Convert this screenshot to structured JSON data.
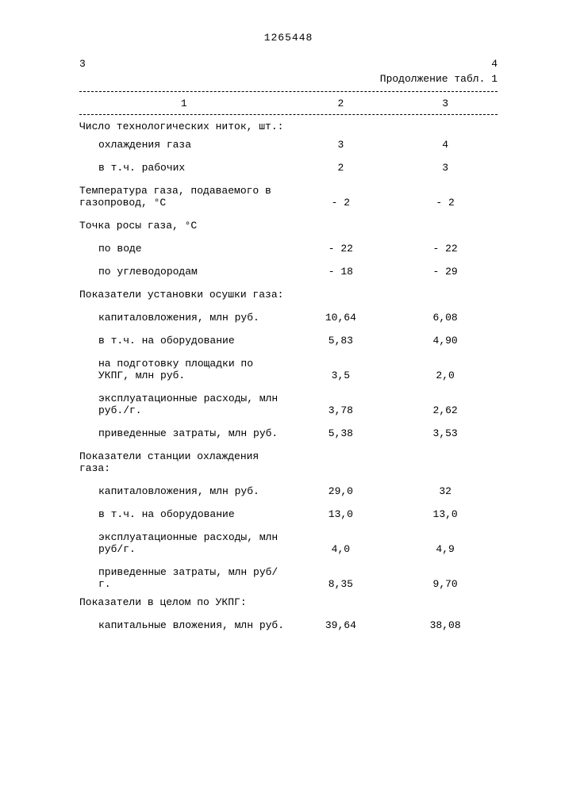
{
  "pageLeft": "3",
  "pageRight": "4",
  "docNumber": "1265448",
  "continuation": "Продолжение табл. 1",
  "headers": {
    "c1": "1",
    "c2": "2",
    "c3": "3"
  },
  "rows": [
    {
      "label": "Число технологических ниток, шт.:",
      "v2": "",
      "v3": "",
      "indent": 1
    },
    {
      "label": "охлаждения газа",
      "v2": "3",
      "v3": "4",
      "indent": 2
    },
    {
      "label": "в т.ч. рабочих",
      "v2": "2",
      "v3": "3",
      "indent": 2,
      "spacer": true
    },
    {
      "label": "Температура газа, подаваемого в газопровод, °C",
      "v2": "- 2",
      "v3": "- 2",
      "indent": 1,
      "spacer": true
    },
    {
      "label": "Точка росы газа, °C",
      "v2": "",
      "v3": "",
      "indent": 1,
      "spacer": true
    },
    {
      "label": "по воде",
      "v2": "- 22",
      "v3": "- 22",
      "indent": 2,
      "spacer": true
    },
    {
      "label": "по углеводородам",
      "v2": "- 18",
      "v3": "- 29",
      "indent": 2,
      "spacer": true
    },
    {
      "label": "Показатели установки осушки газа:",
      "v2": "",
      "v3": "",
      "indent": 1,
      "spacer": true
    },
    {
      "label": "капиталовложения, млн руб.",
      "v2": "10,64",
      "v3": "6,08",
      "indent": 2,
      "spacer": true
    },
    {
      "label": "в т.ч. на оборудование",
      "v2": "5,83",
      "v3": "4,90",
      "indent": 2,
      "spacer": true
    },
    {
      "label": "на подготовку площадки по УКПГ, млн руб.",
      "v2": "3,5",
      "v3": "2,0",
      "indent": 2,
      "spacer": true
    },
    {
      "label": "эксплуатационные расходы, млн руб./г.",
      "v2": "3,78",
      "v3": "2,62",
      "indent": 2,
      "spacer": true
    },
    {
      "label": "приведенные затраты, млн руб.",
      "v2": "5,38",
      "v3": "3,53",
      "indent": 2,
      "spacer": true
    },
    {
      "label": "Показатели станции охлаждения газа:",
      "v2": "",
      "v3": "",
      "indent": 1,
      "spacer": true
    },
    {
      "label": "капиталовложения, млн руб.",
      "v2": "29,0",
      "v3": "32",
      "indent": 2,
      "spacer": true
    },
    {
      "label": "в т.ч. на оборудование",
      "v2": "13,0",
      "v3": "13,0",
      "indent": 2,
      "spacer": true
    },
    {
      "label": "эксплуатационные расходы, млн руб/г.",
      "v2": "4,0",
      "v3": "4,9",
      "indent": 2,
      "spacer": true
    },
    {
      "label": "приведенные затраты, млн руб/г.",
      "v2": "8,35",
      "v3": "9,70",
      "indent": 2,
      "spacer": true
    },
    {
      "label": "Показатели в целом по УКПГ:",
      "v2": "",
      "v3": "",
      "indent": 1
    },
    {
      "label": "капитальные вложения, млн руб.",
      "v2": "39,64",
      "v3": "38,08",
      "indent": 2,
      "spacer": true
    }
  ]
}
